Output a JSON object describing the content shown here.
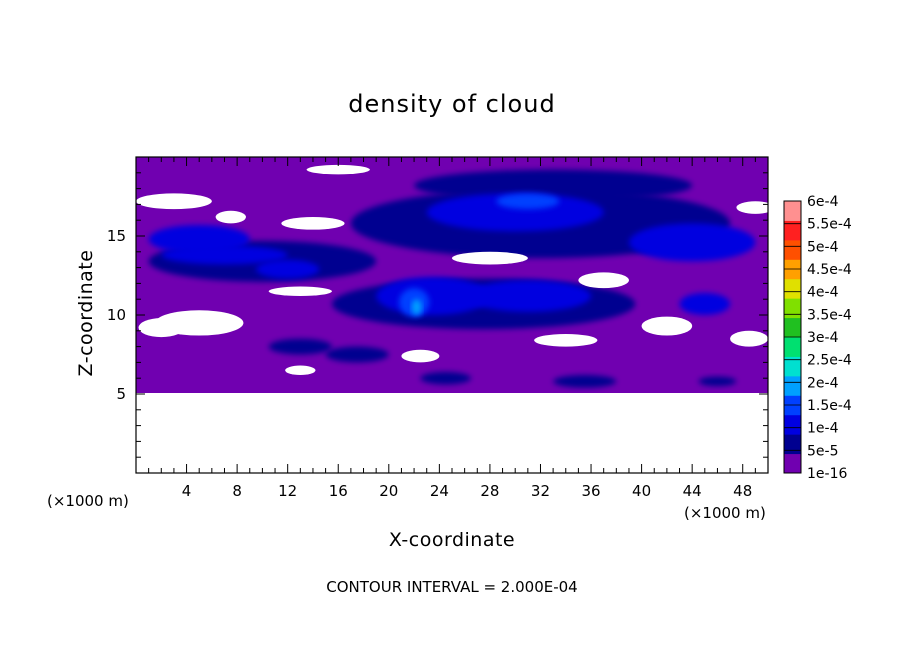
{
  "chart_data": {
    "type": "heatmap",
    "title": "density of cloud",
    "xlabel": "X-coordinate",
    "ylabel": "Z-coordinate",
    "x_unit": "(×1000 m)",
    "y_unit": "(×1000 m)",
    "xlim": [
      0,
      50
    ],
    "ylim": [
      0,
      20
    ],
    "x_ticks": [
      4,
      8,
      12,
      16,
      20,
      24,
      28,
      32,
      36,
      40,
      44,
      48
    ],
    "y_ticks": [
      5,
      10,
      15
    ],
    "data_bottom_z": 5,
    "footer": "CONTOUR INTERVAL = 2.000E-04",
    "colorbar": {
      "levels": [
        "1e-16",
        "5e-5",
        "1e-4",
        "1.5e-4",
        "2e-4",
        "2.5e-4",
        "3e-4",
        "3.5e-4",
        "4e-4",
        "4.5e-4",
        "5e-4",
        "5.5e-4",
        "6e-4"
      ],
      "colors": [
        "#7000b0",
        "#000090",
        "#0000e0",
        "#0040ff",
        "#00a0ff",
        "#00e0d0",
        "#00e070",
        "#20c020",
        "#80e000",
        "#e0e000",
        "#ffa000",
        "#ff5000",
        "#ff2020",
        "#ff9090"
      ]
    },
    "cloud_features": [
      {
        "x": 10.0,
        "z": 13.4,
        "rx": 9.0,
        "rz": 1.3,
        "level": 1
      },
      {
        "x": 5.0,
        "z": 14.8,
        "rx": 4.0,
        "rz": 0.9,
        "level": 2
      },
      {
        "x": 7.0,
        "z": 13.8,
        "rx": 5.0,
        "rz": 0.6,
        "level": 2
      },
      {
        "x": 12.0,
        "z": 12.9,
        "rx": 2.5,
        "rz": 0.6,
        "level": 2
      },
      {
        "x": 32.0,
        "z": 15.8,
        "rx": 15.0,
        "rz": 2.2,
        "level": 1
      },
      {
        "x": 33.0,
        "z": 18.2,
        "rx": 11.0,
        "rz": 1.0,
        "level": 1
      },
      {
        "x": 30.0,
        "z": 16.5,
        "rx": 7.0,
        "rz": 1.2,
        "level": 2
      },
      {
        "x": 31.0,
        "z": 17.2,
        "rx": 2.5,
        "rz": 0.5,
        "level": 3
      },
      {
        "x": 44.0,
        "z": 14.6,
        "rx": 5.0,
        "rz": 1.2,
        "level": 2
      },
      {
        "x": 27.5,
        "z": 10.7,
        "rx": 12.0,
        "rz": 1.6,
        "level": 1
      },
      {
        "x": 23.5,
        "z": 11.2,
        "rx": 4.5,
        "rz": 1.2,
        "level": 2
      },
      {
        "x": 31.0,
        "z": 11.2,
        "rx": 5.0,
        "rz": 1.0,
        "level": 2
      },
      {
        "x": 22.0,
        "z": 10.8,
        "rx": 1.2,
        "rz": 0.9,
        "level": 3
      },
      {
        "x": 22.2,
        "z": 10.5,
        "rx": 0.4,
        "rz": 0.5,
        "level": 4
      },
      {
        "x": 45.0,
        "z": 10.7,
        "rx": 2.0,
        "rz": 0.7,
        "level": 2
      },
      {
        "x": 13.0,
        "z": 8.0,
        "rx": 2.5,
        "rz": 0.5,
        "level": 1
      },
      {
        "x": 17.5,
        "z": 7.5,
        "rx": 2.5,
        "rz": 0.5,
        "level": 1
      },
      {
        "x": 24.5,
        "z": 6.0,
        "rx": 2.0,
        "rz": 0.4,
        "level": 1
      },
      {
        "x": 35.5,
        "z": 5.8,
        "rx": 2.5,
        "rz": 0.4,
        "level": 1
      },
      {
        "x": 46.0,
        "z": 5.8,
        "rx": 1.5,
        "rz": 0.3,
        "level": 1
      }
    ],
    "clear_regions": [
      {
        "x": 3.0,
        "z": 17.2,
        "rx": 3.0,
        "rz": 0.5
      },
      {
        "x": 7.5,
        "z": 16.2,
        "rx": 1.2,
        "rz": 0.4
      },
      {
        "x": 14.0,
        "z": 15.8,
        "rx": 2.5,
        "rz": 0.4
      },
      {
        "x": 16.0,
        "z": 19.2,
        "rx": 2.5,
        "rz": 0.3
      },
      {
        "x": 28.0,
        "z": 13.6,
        "rx": 3.0,
        "rz": 0.4
      },
      {
        "x": 37.0,
        "z": 12.2,
        "rx": 2.0,
        "rz": 0.5
      },
      {
        "x": 49.0,
        "z": 16.8,
        "rx": 1.5,
        "rz": 0.4
      },
      {
        "x": 5.0,
        "z": 9.5,
        "rx": 3.5,
        "rz": 0.8
      },
      {
        "x": 2.0,
        "z": 9.2,
        "rx": 1.8,
        "rz": 0.6
      },
      {
        "x": 13.0,
        "z": 11.5,
        "rx": 2.5,
        "rz": 0.3
      },
      {
        "x": 22.5,
        "z": 7.4,
        "rx": 1.5,
        "rz": 0.4
      },
      {
        "x": 34.0,
        "z": 8.4,
        "rx": 2.5,
        "rz": 0.4
      },
      {
        "x": 42.0,
        "z": 9.3,
        "rx": 2.0,
        "rz": 0.6
      },
      {
        "x": 48.5,
        "z": 8.5,
        "rx": 1.5,
        "rz": 0.5
      },
      {
        "x": 13.0,
        "z": 6.5,
        "rx": 1.2,
        "rz": 0.3
      }
    ]
  }
}
